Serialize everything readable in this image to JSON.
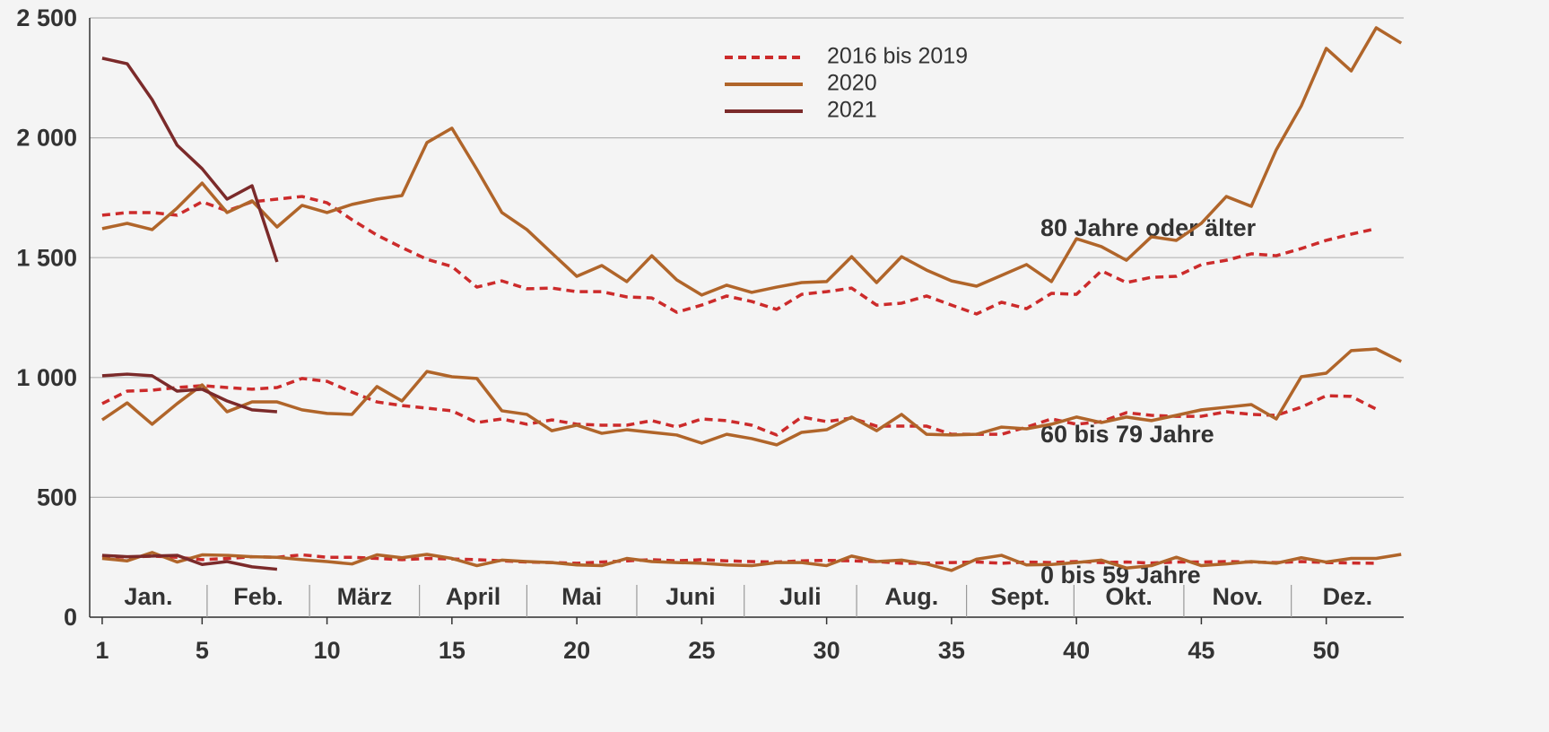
{
  "chart_data": {
    "type": "line",
    "x": [
      1,
      2,
      3,
      4,
      5,
      6,
      7,
      8,
      9,
      10,
      11,
      12,
      13,
      14,
      15,
      16,
      17,
      18,
      19,
      20,
      21,
      22,
      23,
      24,
      25,
      26,
      27,
      28,
      29,
      30,
      31,
      32,
      33,
      34,
      35,
      36,
      37,
      38,
      39,
      40,
      41,
      42,
      43,
      44,
      45,
      46,
      47,
      48,
      49,
      50,
      51,
      52,
      53
    ],
    "xlim": [
      0.5,
      53.1
    ],
    "xticks": [
      1,
      5,
      10,
      15,
      20,
      25,
      30,
      35,
      40,
      45,
      50
    ],
    "ylim": [
      0,
      2500
    ],
    "yticks": [
      0,
      500,
      {
        "value": 1000,
        "label": "1 000"
      },
      {
        "value": 1500,
        "label": "1 500"
      },
      {
        "value": 2000,
        "label": "2 000"
      },
      {
        "value": 2500,
        "label": "2 500"
      }
    ],
    "grid": true,
    "months": [
      "Jan.",
      "Feb.",
      "März",
      "April",
      "Mai",
      "Juni",
      "Juli",
      "Aug.",
      "Sept.",
      "Okt.",
      "Nov.",
      "Dez."
    ],
    "groups": [
      "80 Jahre oder älter",
      "60 bis 79 Jahre",
      "0 bis 59 Jahre"
    ],
    "series": [
      {
        "name": "2016 bis 2019",
        "color": "#cc2b2b",
        "dashed": true,
        "values": [
          [
            1677,
            1688,
            1688,
            1677,
            1733,
            1695,
            1733,
            1744,
            1755,
            1729,
            1658,
            1594,
            1542,
            1493,
            1463,
            1377,
            1403,
            1370,
            1373,
            1358,
            1358,
            1336,
            1332,
            1272,
            1302,
            1340,
            1317,
            1284,
            1347,
            1358,
            1373,
            1302,
            1310,
            1340,
            1302,
            1265,
            1314,
            1287,
            1351,
            1347,
            1445,
            1396,
            1418,
            1422,
            1471,
            1489,
            1516,
            1508,
            1538,
            1572,
            1598,
            1621,
            null
          ],
          [
            891,
            943,
            947,
            958,
            966,
            958,
            951,
            958,
            996,
            984,
            939,
            898,
            883,
            872,
            861,
            812,
            827,
            805,
            823,
            805,
            801,
            801,
            820,
            793,
            827,
            820,
            801,
            760,
            835,
            816,
            831,
            797,
            797,
            797,
            763,
            763,
            763,
            793,
            827,
            805,
            816,
            853,
            842,
            838,
            838,
            857,
            846,
            842,
            876,
            924,
            921,
            868,
            null
          ],
          [
            255,
            250,
            255,
            250,
            240,
            245,
            252,
            250,
            260,
            250,
            250,
            245,
            240,
            245,
            243,
            240,
            235,
            230,
            228,
            225,
            230,
            235,
            240,
            235,
            240,
            235,
            232,
            230,
            235,
            237,
            235,
            232,
            225,
            225,
            228,
            230,
            225,
            230,
            228,
            232,
            228,
            230,
            226,
            230,
            230,
            232,
            230,
            228,
            232,
            228,
            226,
            225,
            null
          ]
        ]
      },
      {
        "name": "2020",
        "color": "#b0652a",
        "dashed": false,
        "values": [
          [
            1621,
            1643,
            1617,
            1707,
            1811,
            1688,
            1737,
            1628,
            1718,
            1688,
            1722,
            1744,
            1759,
            1980,
            2040,
            1868,
            1688,
            1617,
            1519,
            1422,
            1467,
            1400,
            1508,
            1407,
            1344,
            1385,
            1355,
            1377,
            1396,
            1400,
            1504,
            1396,
            1504,
            1448,
            1403,
            1381,
            1426,
            1471,
            1400,
            1579,
            1546,
            1489,
            1587,
            1572,
            1643,
            1755,
            1714,
            1950,
            2133,
            2373,
            2279,
            2459,
            2395
          ],
          [
            823,
            894,
            805,
            891,
            969,
            857,
            898,
            898,
            865,
            850,
            846,
            962,
            902,
            1025,
            1003,
            996,
            861,
            846,
            778,
            801,
            767,
            782,
            771,
            760,
            726,
            763,
            745,
            719,
            771,
            782,
            835,
            778,
            846,
            763,
            760,
            763,
            793,
            786,
            805,
            835,
            812,
            835,
            820,
            842,
            865,
            876,
            887,
            827,
            1003,
            1018,
            1112,
            1119,
            1067
          ],
          [
            245,
            235,
            270,
            230,
            260,
            258,
            252,
            250,
            240,
            232,
            222,
            260,
            248,
            262,
            245,
            215,
            238,
            232,
            228,
            218,
            215,
            245,
            232,
            228,
            225,
            218,
            215,
            228,
            228,
            215,
            255,
            232,
            238,
            222,
            195,
            242,
            258,
            218,
            220,
            228,
            238,
            205,
            215,
            250,
            215,
            222,
            232,
            225,
            248,
            230,
            245,
            245,
            262
          ]
        ]
      },
      {
        "name": "2021",
        "color": "#7b2a2a",
        "dashed": false,
        "values": [
          [
            2332,
            2309,
            2159,
            1969,
            1871,
            1744,
            1800,
            1482,
            null,
            null,
            null,
            null,
            null,
            null,
            null,
            null,
            null,
            null,
            null,
            null,
            null,
            null,
            null,
            null,
            null,
            null,
            null,
            null,
            null,
            null,
            null,
            null,
            null,
            null,
            null,
            null,
            null,
            null,
            null,
            null,
            null,
            null,
            null,
            null,
            null,
            null,
            null,
            null,
            null,
            null,
            null,
            null,
            null
          ],
          [
            1007,
            1014,
            1007,
            943,
            951,
            902,
            865,
            857,
            null,
            null,
            null,
            null,
            null,
            null,
            null,
            null,
            null,
            null,
            null,
            null,
            null,
            null,
            null,
            null,
            null,
            null,
            null,
            null,
            null,
            null,
            null,
            null,
            null,
            null,
            null,
            null,
            null,
            null,
            null,
            null,
            null,
            null,
            null,
            null,
            null,
            null,
            null,
            null,
            null,
            null,
            null,
            null,
            null
          ],
          [
            258,
            252,
            255,
            258,
            220,
            232,
            210,
            200,
            null,
            null,
            null,
            null,
            null,
            null,
            null,
            null,
            null,
            null,
            null,
            null,
            null,
            null,
            null,
            null,
            null,
            null,
            null,
            null,
            null,
            null,
            null,
            null,
            null,
            null,
            null,
            null,
            null,
            null,
            null,
            null,
            null,
            null,
            null,
            null,
            null,
            null,
            null,
            null,
            null,
            null,
            null,
            null,
            null
          ]
        ]
      }
    ]
  }
}
